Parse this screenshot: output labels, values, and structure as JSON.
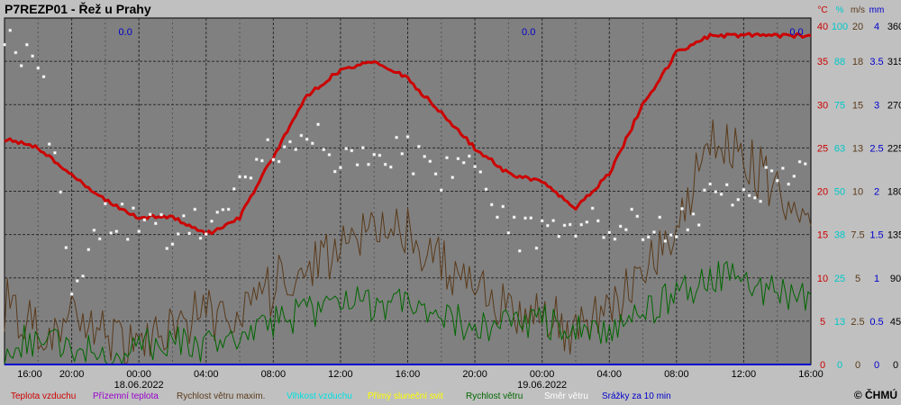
{
  "title": "P7REZP01 - Řež u Prahy",
  "copyright": "© ČHMÚ",
  "right_axes": [
    {
      "unit": "°C",
      "color": "#cc0000",
      "ticks": [
        "40",
        "35",
        "30",
        "25",
        "20",
        "15",
        "10",
        "5",
        "0"
      ]
    },
    {
      "unit": "%",
      "color": "#00c8c8",
      "ticks": [
        "100",
        "88",
        "75",
        "63",
        "50",
        "38",
        "25",
        "13",
        "0"
      ]
    },
    {
      "unit": "m/s",
      "color": "#5a3a1a",
      "ticks": [
        "20",
        "18",
        "15",
        "13",
        "10",
        "7.5",
        "5",
        "2.5",
        "0"
      ]
    },
    {
      "unit": "mm",
      "color": "#0000cc",
      "ticks": [
        "4",
        "3.5",
        "3",
        "2.5",
        "2",
        "1.5",
        "1",
        "0.5",
        "0"
      ]
    },
    {
      "unit": "",
      "color": "#000000",
      "ticks": [
        "360",
        "315",
        "270",
        "225",
        "180",
        "135",
        "90",
        "45",
        "0"
      ]
    }
  ],
  "x_tick_labels": [
    "16:00",
    "20:00",
    "00:00",
    "04:00",
    "08:00",
    "12:00",
    "16:00",
    "20:00",
    "00:00",
    "04:00",
    "08:00",
    "12:00",
    "16:00"
  ],
  "date_labels": [
    "18.06.2022",
    "19.06.2022"
  ],
  "precip_labels": [
    "0.0",
    "0.0",
    "0.0"
  ],
  "legend": [
    {
      "label": "Teplota vzduchu",
      "color": "#cc0000"
    },
    {
      "label": "Přízemní teplota",
      "color": "#9900cc"
    },
    {
      "label": "Rychlost větru maxim.",
      "color": "#5a3a1a"
    },
    {
      "label": "Vlhkost vzduchu",
      "color": "#00e0e0"
    },
    {
      "label": "Přímý sluneční svit",
      "color": "#ffff00"
    },
    {
      "label": "Rychlost větru",
      "color": "#006600"
    },
    {
      "label": "Směr větru",
      "color": "#ffffff"
    },
    {
      "label": "Srážky za 10 min",
      "color": "#0000cc"
    }
  ],
  "chart_data": {
    "type": "line",
    "title": "P7REZP01 - Řež u Prahy",
    "x": [
      "16:00",
      "18:00",
      "20:00",
      "22:00",
      "00:00",
      "02:00",
      "04:00",
      "06:00",
      "08:00",
      "10:00",
      "12:00",
      "14:00",
      "16:00",
      "18:00",
      "20:00",
      "22:00",
      "00:00",
      "02:00",
      "04:00",
      "06:00",
      "08:00",
      "10:00",
      "12:00",
      "14:00",
      "16:00"
    ],
    "x_start": "17.06.2022 16:00",
    "x_end": "19.06.2022 16:00",
    "grid": true,
    "series": [
      {
        "name": "Teplota vzduchu",
        "unit": "°C",
        "axis": "°C",
        "color": "#cc0000",
        "values": [
          26,
          25,
          22,
          19,
          17,
          17,
          15,
          17,
          24,
          31,
          34,
          35,
          33,
          29,
          25,
          22,
          21,
          18,
          22,
          30,
          36,
          38,
          38,
          38,
          38
        ]
      },
      {
        "name": "Rychlost větru maxim.",
        "unit": "m/s",
        "axis": "m/s",
        "color": "#5a3a1a",
        "values": [
          3.5,
          2,
          2.5,
          1.5,
          1,
          2,
          3,
          2.5,
          4.5,
          6,
          6.5,
          8,
          7.5,
          6,
          4,
          3.5,
          3,
          2,
          3,
          5,
          8,
          13,
          12,
          10,
          8
        ]
      },
      {
        "name": "Rychlost větru",
        "unit": "m/s",
        "axis": "m/s",
        "color": "#006600",
        "values": [
          1,
          1.5,
          1,
          0.5,
          1,
          1.5,
          1,
          1.5,
          2.5,
          3,
          3.5,
          3.5,
          3.5,
          3,
          2,
          2.5,
          2.5,
          2,
          2,
          3,
          4,
          5,
          5,
          4,
          4
        ]
      },
      {
        "name": "Směr větru",
        "unit": "°",
        "axis": "deg",
        "color": "#ffffff",
        "style": "points",
        "values": [
          330,
          320,
          90,
          150,
          150,
          135,
          150,
          190,
          220,
          240,
          210,
          220,
          220,
          200,
          200,
          140,
          130,
          140,
          145,
          140,
          150,
          170,
          180,
          190,
          200
        ]
      },
      {
        "name": "Srážky za 10 min",
        "unit": "mm",
        "axis": "mm",
        "color": "#0000cc",
        "values": [
          0,
          0,
          0,
          0,
          0,
          0,
          0,
          0,
          0,
          0,
          0,
          0,
          0,
          0,
          0,
          0,
          0,
          0,
          0,
          0,
          0,
          0,
          0,
          0,
          0
        ]
      }
    ],
    "ylim": {
      "°C": [
        0,
        40
      ],
      "%": [
        0,
        100
      ],
      "m/s": [
        0,
        20
      ],
      "mm": [
        0,
        4
      ],
      "deg": [
        0,
        360
      ]
    }
  }
}
